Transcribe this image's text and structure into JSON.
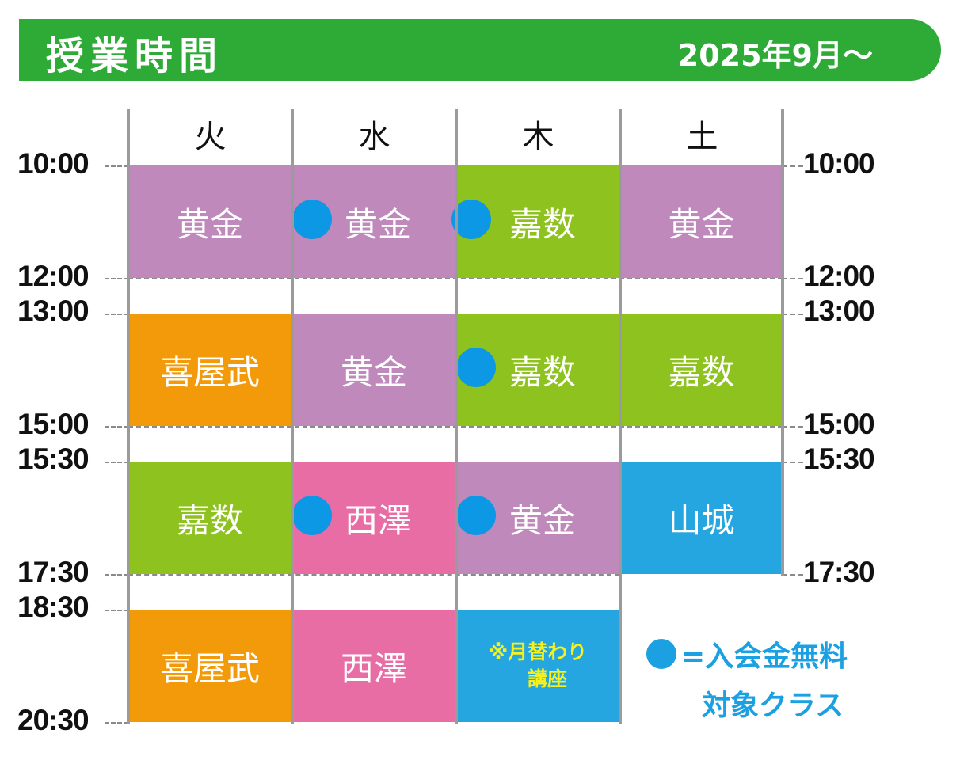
{
  "header": {
    "title": "授業時間",
    "date": "2025年9月〜"
  },
  "days": [
    "火",
    "水",
    "木",
    "土"
  ],
  "times": {
    "t1000": "10:00",
    "t1200": "12:00",
    "t1300": "13:00",
    "t1500": "15:00",
    "t1530": "15:30",
    "t1730": "17:30",
    "t1830": "18:30",
    "t2030": "20:30"
  },
  "schedule": {
    "tue": {
      "s1": "黄金",
      "s2": "喜屋武",
      "s3": "嘉数",
      "s4": "喜屋武"
    },
    "wed": {
      "s1": "黄金",
      "s2": "黄金",
      "s3": "西澤",
      "s4": "西澤"
    },
    "thu": {
      "s1": "嘉数",
      "s2": "嘉数",
      "s3": "黄金",
      "s4_line1": "※月替わり",
      "s4_line2": "講座"
    },
    "sat": {
      "s1": "黄金",
      "s2": "嘉数",
      "s3": "山城"
    }
  },
  "free_entry_marks": [
    "wed.s1",
    "thu.s1",
    "thu.s2",
    "wed.s3",
    "thu.s3"
  ],
  "legend": {
    "line1": "=入会金無料",
    "line2": "対象クラス"
  },
  "colors": {
    "header_green": "#2eaa37",
    "purple": "#bf89bc",
    "green": "#8dc21f",
    "orange": "#f39a0a",
    "pink": "#e96da5",
    "blue": "#25a6e0",
    "dot_blue": "#0c98e4",
    "note_yellow": "#f4f11f",
    "legend_blue": "#1ba0e2"
  }
}
